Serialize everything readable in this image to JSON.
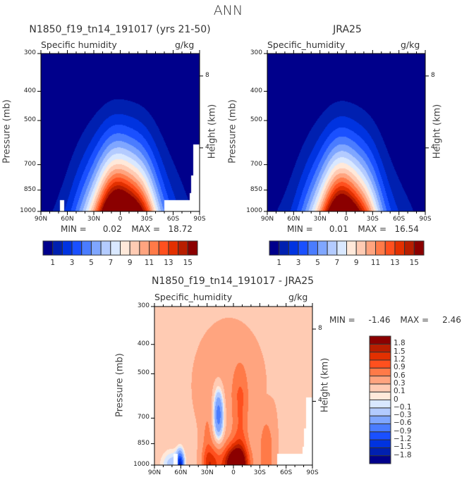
{
  "figure_title": "ANN",
  "chart_data": [
    {
      "type": "heatmap",
      "panel": "model",
      "title": "N1850_f19_tn14_191017 (yrs 21-50)",
      "variable_label": "Specific humidity",
      "units": "g/kg",
      "xlabel": "",
      "ylabel": "Pressure (mb)",
      "ylabel_right": "Height (km)",
      "x_ticks": [
        "90N",
        "60N",
        "30N",
        "0",
        "30S",
        "60S",
        "90S"
      ],
      "y_ticks": [
        "300",
        "400",
        "500",
        "700",
        "850",
        "1000"
      ],
      "y_ticks_right": [
        "8",
        "4"
      ],
      "xlim": [
        90,
        -90
      ],
      "ylim": [
        1000,
        300
      ],
      "min_label": "MIN =",
      "min_value": "0.02",
      "max_label": "MAX =",
      "max_value": "18.72",
      "min": 0.02,
      "max": 18.72,
      "peak": {
        "lat": -2,
        "pressure": 1000,
        "value": 18.72
      },
      "colorbar": {
        "orientation": "horizontal",
        "levels": [
          1,
          2,
          3,
          4,
          5,
          6,
          7,
          8,
          9,
          10,
          11,
          12,
          13,
          14,
          15
        ],
        "labels": [
          "1",
          "3",
          "5",
          "7",
          "9",
          "11",
          "13",
          "15"
        ]
      }
    },
    {
      "type": "heatmap",
      "panel": "obs",
      "title": "JRA25",
      "variable_label": "Specific_humidity",
      "units": "g/kg",
      "xlabel": "",
      "ylabel": "Pressure (mb)",
      "ylabel_right": "Height (km)",
      "x_ticks": [
        "90N",
        "60N",
        "30N",
        "0",
        "30S",
        "60S",
        "90S"
      ],
      "y_ticks": [
        "300",
        "400",
        "500",
        "700",
        "850",
        "1000"
      ],
      "y_ticks_right": [
        "8",
        "4"
      ],
      "xlim": [
        90,
        -90
      ],
      "ylim": [
        1000,
        300
      ],
      "min_label": "MIN =",
      "min_value": "0.01",
      "max_label": "MAX =",
      "max_value": "16.54",
      "min": 0.01,
      "max": 16.54,
      "peak": {
        "lat": 2,
        "pressure": 1000,
        "value": 16.54
      },
      "colorbar": {
        "orientation": "horizontal",
        "levels": [
          1,
          2,
          3,
          4,
          5,
          6,
          7,
          8,
          9,
          10,
          11,
          12,
          13,
          14,
          15
        ],
        "labels": [
          "1",
          "3",
          "5",
          "7",
          "9",
          "11",
          "13",
          "15"
        ]
      }
    },
    {
      "type": "heatmap",
      "panel": "difference",
      "title": "N1850_f19_tn14_191017 - JRA25",
      "variable_label": "Specific_humidity",
      "units": "g/kg",
      "xlabel": "",
      "ylabel": "Pressure (mb)",
      "ylabel_right": "Height (km)",
      "x_ticks": [
        "90N",
        "60N",
        "30N",
        "0",
        "30S",
        "60S",
        "90S"
      ],
      "y_ticks": [
        "300",
        "400",
        "500",
        "700",
        "850",
        "1000"
      ],
      "y_ticks_right": [
        "8",
        "4"
      ],
      "xlim": [
        90,
        -90
      ],
      "ylim": [
        1000,
        300
      ],
      "min_label": "MIN =",
      "min_value": "-1.46",
      "max_label": "MAX =",
      "max_value": "2.46",
      "min": -1.46,
      "max": 2.46,
      "features": [
        {
          "desc": "negative (dry) column",
          "lat": 17,
          "pressure_range": [
            630,
            900
          ],
          "value": -0.6
        },
        {
          "desc": "positive moist maximum near surface",
          "lat": -3,
          "pressure": 1000,
          "value": 2.46
        },
        {
          "desc": "negative pocket high latitude surface",
          "lat": 60,
          "pressure": 1000,
          "value": -1.46
        }
      ],
      "colorbar": {
        "orientation": "vertical",
        "levels": [
          -1.8,
          -1.5,
          -1.2,
          -0.9,
          -0.6,
          -0.3,
          -0.1,
          0,
          0.1,
          0.3,
          0.6,
          0.9,
          1.2,
          1.5,
          1.8
        ],
        "labels": [
          "1.8",
          "1.5",
          "1.2",
          "0.9",
          "0.6",
          "0.3",
          "0.1",
          "0",
          "-0.1",
          "-0.3",
          "-0.6",
          "-0.9",
          "-1.2",
          "-1.5",
          "-1.8"
        ]
      }
    }
  ],
  "palette": [
    "#00008b",
    "#0020b0",
    "#0033e0",
    "#1a50ff",
    "#4a7cff",
    "#7fa6ff",
    "#b3cbff",
    "#d9e8ff",
    "#ffe9da",
    "#ffcbb3",
    "#ffa47f",
    "#ff7a48",
    "#ff501e",
    "#e33000",
    "#b81e00",
    "#8b0000"
  ]
}
